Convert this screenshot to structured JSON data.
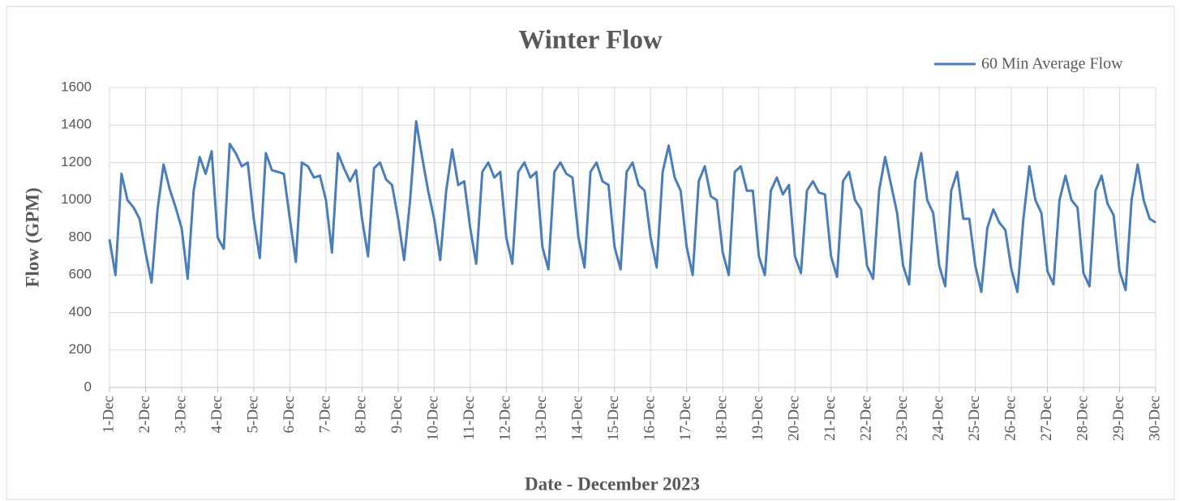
{
  "chart_data": {
    "type": "line",
    "title": "Winter Flow",
    "xlabel": "Date - December 2023",
    "ylabel": "Flow (GPM)",
    "legend": "top-right",
    "grid": true,
    "xlim": [
      0,
      696
    ],
    "ylim": [
      0,
      1600
    ],
    "yticks": [
      0,
      200,
      400,
      600,
      800,
      1000,
      1200,
      1400,
      1600
    ],
    "xticks": [
      {
        "value": 0,
        "label": "1-Dec"
      },
      {
        "value": 24,
        "label": "2-Dec"
      },
      {
        "value": 48,
        "label": "3-Dec"
      },
      {
        "value": 72,
        "label": "4-Dec"
      },
      {
        "value": 96,
        "label": "5-Dec"
      },
      {
        "value": 120,
        "label": "6-Dec"
      },
      {
        "value": 144,
        "label": "7-Dec"
      },
      {
        "value": 168,
        "label": "8-Dec"
      },
      {
        "value": 192,
        "label": "9-Dec"
      },
      {
        "value": 216,
        "label": "10-Dec"
      },
      {
        "value": 240,
        "label": "11-Dec"
      },
      {
        "value": 264,
        "label": "12-Dec"
      },
      {
        "value": 288,
        "label": "13-Dec"
      },
      {
        "value": 312,
        "label": "14-Dec"
      },
      {
        "value": 336,
        "label": "15-Dec"
      },
      {
        "value": 360,
        "label": "16-Dec"
      },
      {
        "value": 384,
        "label": "17-Dec"
      },
      {
        "value": 408,
        "label": "18-Dec"
      },
      {
        "value": 432,
        "label": "19-Dec"
      },
      {
        "value": 456,
        "label": "20-Dec"
      },
      {
        "value": 480,
        "label": "21-Dec"
      },
      {
        "value": 504,
        "label": "22-Dec"
      },
      {
        "value": 528,
        "label": "23-Dec"
      },
      {
        "value": 552,
        "label": "24-Dec"
      },
      {
        "value": 576,
        "label": "25-Dec"
      },
      {
        "value": 600,
        "label": "26-Dec"
      },
      {
        "value": 624,
        "label": "27-Dec"
      },
      {
        "value": 648,
        "label": "28-Dec"
      },
      {
        "value": 672,
        "label": "29-Dec"
      },
      {
        "value": 696,
        "label": "30-Dec"
      }
    ],
    "x": [
      0,
      4,
      8,
      12,
      16,
      20,
      24,
      28,
      32,
      36,
      40,
      44,
      48,
      52,
      56,
      60,
      64,
      68,
      72,
      76,
      80,
      84,
      88,
      92,
      96,
      100,
      104,
      108,
      112,
      116,
      120,
      124,
      128,
      132,
      136,
      140,
      144,
      148,
      152,
      156,
      160,
      164,
      168,
      172,
      176,
      180,
      184,
      188,
      192,
      196,
      200,
      204,
      208,
      212,
      216,
      220,
      224,
      228,
      232,
      236,
      240,
      244,
      248,
      252,
      256,
      260,
      264,
      268,
      272,
      276,
      280,
      284,
      288,
      292,
      296,
      300,
      304,
      308,
      312,
      316,
      320,
      324,
      328,
      332,
      336,
      340,
      344,
      348,
      352,
      356,
      360,
      364,
      368,
      372,
      376,
      380,
      384,
      388,
      392,
      396,
      400,
      404,
      408,
      412,
      416,
      420,
      424,
      428,
      432,
      436,
      440,
      444,
      448,
      452,
      456,
      460,
      464,
      468,
      472,
      476,
      480,
      484,
      488,
      492,
      496,
      500,
      504,
      508,
      512,
      516,
      520,
      524,
      528,
      532,
      536,
      540,
      544,
      548,
      552,
      556,
      560,
      564,
      568,
      572,
      576,
      580,
      584,
      588,
      592,
      596,
      600,
      604,
      608,
      612,
      616,
      620,
      624,
      628,
      632,
      636,
      640,
      644,
      648,
      652,
      656,
      660,
      664,
      668,
      672,
      676,
      680,
      684,
      688,
      692,
      696
    ],
    "series": [
      {
        "name": "60 Min Average Flow",
        "color": "#4a7ebb",
        "values": [
          790,
          600,
          1140,
          1000,
          960,
          900,
          720,
          560,
          950,
          1190,
          1060,
          960,
          850,
          580,
          1050,
          1230,
          1140,
          1260,
          800,
          740,
          1300,
          1250,
          1180,
          1200,
          900,
          690,
          1250,
          1160,
          1150,
          1140,
          900,
          670,
          1200,
          1180,
          1120,
          1130,
          1000,
          720,
          1250,
          1170,
          1100,
          1160,
          900,
          700,
          1170,
          1200,
          1110,
          1080,
          900,
          680,
          1000,
          1420,
          1230,
          1050,
          900,
          680,
          1050,
          1270,
          1080,
          1100,
          850,
          660,
          1150,
          1200,
          1120,
          1150,
          800,
          660,
          1150,
          1200,
          1120,
          1150,
          750,
          630,
          1150,
          1200,
          1140,
          1120,
          800,
          640,
          1150,
          1200,
          1100,
          1080,
          750,
          630,
          1150,
          1200,
          1080,
          1050,
          800,
          640,
          1150,
          1290,
          1120,
          1050,
          750,
          600,
          1100,
          1180,
          1020,
          1000,
          720,
          600,
          1150,
          1180,
          1050,
          1050,
          700,
          600,
          1050,
          1120,
          1030,
          1080,
          700,
          610,
          1050,
          1100,
          1040,
          1030,
          700,
          590,
          1100,
          1150,
          1000,
          950,
          650,
          580,
          1050,
          1230,
          1080,
          930,
          650,
          550,
          1100,
          1250,
          1000,
          930,
          650,
          540,
          1050,
          1150,
          900,
          900,
          650,
          510,
          850,
          950,
          880,
          840,
          630,
          510,
          900,
          1180,
          1000,
          930,
          620,
          550,
          1000,
          1130,
          1000,
          960,
          610,
          540,
          1050,
          1130,
          980,
          920,
          620,
          520,
          1000,
          1190,
          1000,
          900,
          880
        ]
      }
    ]
  }
}
